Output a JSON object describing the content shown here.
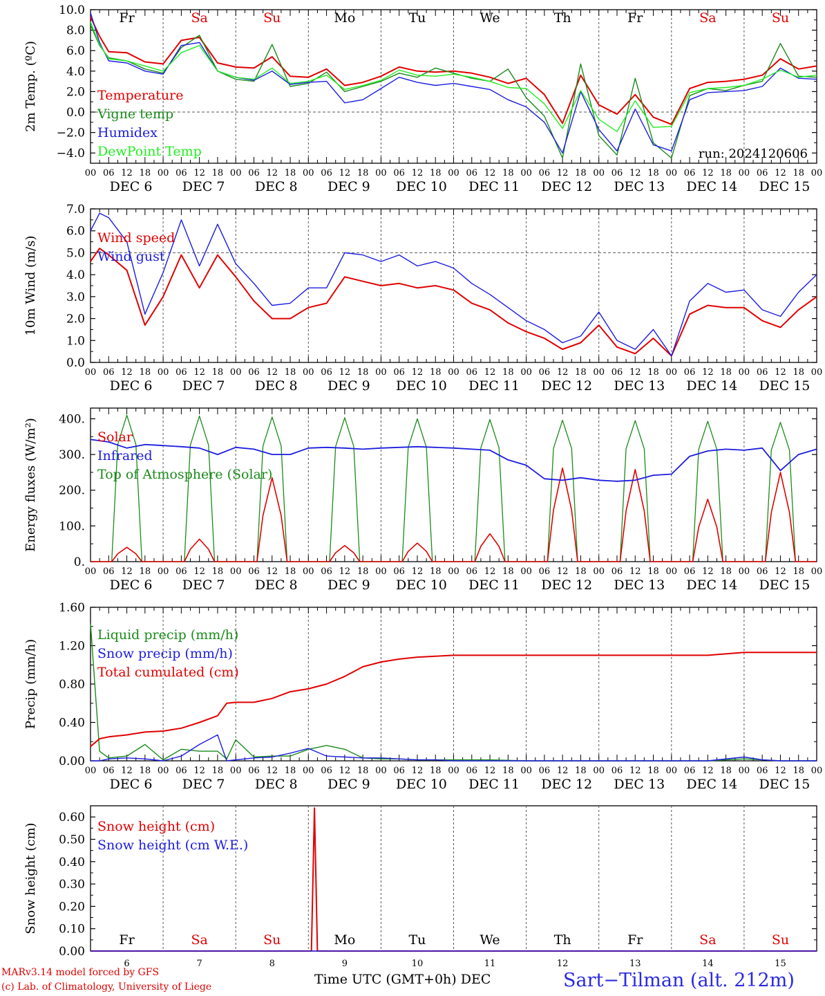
{
  "colors": {
    "red": "#e00000",
    "green": "#1a8a1a",
    "blue": "#1c1ce0",
    "lightgreen": "#22ee22",
    "axis": "#000000"
  },
  "days": [
    "Fr",
    "Sa",
    "Su",
    "Mo",
    "Tu",
    "We",
    "Th",
    "Fr",
    "Sa",
    "Su"
  ],
  "weekend": [
    false,
    true,
    true,
    false,
    false,
    false,
    false,
    false,
    true,
    true
  ],
  "dates": [
    "DEC 6",
    "DEC 7",
    "DEC 8",
    "DEC 9",
    "DEC 10",
    "DEC 11",
    "DEC 12",
    "DEC 13",
    "DEC 14",
    "DEC 15"
  ],
  "day_numbers": [
    "6",
    "7",
    "8",
    "9",
    "10",
    "11",
    "12",
    "13",
    "14",
    "15"
  ],
  "hour_labels": [
    "00",
    "06",
    "12",
    "18"
  ],
  "footer": {
    "credit_line1": "MARv3.14 model forced by GFS",
    "credit_line2": "(c) Lab. of Climatology, University of Liege",
    "xlabel": "Time UTC (GMT+0h) DEC",
    "station": "Sart−Tilman (alt. 212m)"
  },
  "chart_data": [
    {
      "type": "line",
      "ylabel": "2m Temp. (ºC)",
      "ylim": [
        -5,
        10
      ],
      "yticks": [
        10,
        8,
        6,
        4,
        2,
        0,
        -2,
        -4
      ],
      "ytick_labels": [
        "10.0",
        "8.0",
        "6.0",
        "4.0",
        "2.0",
        "0.0",
        "−2.0",
        "−4.0"
      ],
      "dashed_y": 0,
      "annotation": "run: 2024120606",
      "x_hours": [
        0,
        3,
        6,
        12,
        18,
        24,
        30,
        36,
        42,
        48,
        54,
        60,
        66,
        72,
        78,
        84,
        90,
        96,
        102,
        108,
        114,
        120,
        126,
        132,
        138,
        144,
        150,
        156,
        162,
        168,
        174,
        180,
        186,
        192,
        198,
        204,
        210,
        216,
        222,
        228,
        234,
        240
      ],
      "series": [
        {
          "name": "Temperature",
          "color": "red",
          "values": [
            9.3,
            7.4,
            5.9,
            5.8,
            4.9,
            4.7,
            7.0,
            7.3,
            4.8,
            4.4,
            4.3,
            5.4,
            3.5,
            3.4,
            4.2,
            2.6,
            2.9,
            3.5,
            4.4,
            4.0,
            3.9,
            4.0,
            3.8,
            3.4,
            2.8,
            3.3,
            1.7,
            -1.1,
            3.6,
            0.7,
            -0.2,
            1.7,
            -0.5,
            -1.2,
            2.3,
            2.9,
            3.0,
            3.2,
            3.6,
            5.2,
            4.2,
            4.5
          ]
        },
        {
          "name": "Vigne temp",
          "color": "green",
          "values": [
            8.5,
            6.5,
            5.3,
            5.0,
            4.2,
            3.8,
            6.3,
            7.5,
            4.0,
            3.2,
            3.0,
            6.6,
            2.5,
            2.8,
            3.9,
            2.0,
            2.5,
            3.0,
            3.8,
            3.4,
            4.3,
            3.8,
            3.3,
            3.0,
            4.2,
            1.4,
            -0.4,
            -4.5,
            4.7,
            -2.3,
            -4.2,
            3.3,
            -3.0,
            -4.5,
            1.6,
            2.3,
            2.1,
            2.6,
            3.0,
            6.7,
            3.5,
            3.4
          ]
        },
        {
          "name": "Humidex",
          "color": "blue",
          "values": [
            9.7,
            6.8,
            5.0,
            4.8,
            4.0,
            3.7,
            6.5,
            6.8,
            4.0,
            3.4,
            3.1,
            4.0,
            2.7,
            2.9,
            3.0,
            0.9,
            1.2,
            2.3,
            3.4,
            2.9,
            2.6,
            2.8,
            2.5,
            2.2,
            1.2,
            0.5,
            -1.0,
            -4.0,
            2.0,
            -1.7,
            -3.8,
            0.3,
            -3.2,
            -3.8,
            1.2,
            1.9,
            2.0,
            2.1,
            2.5,
            4.3,
            3.3,
            3.2
          ]
        },
        {
          "name": "DewPoint Temp",
          "color": "lightgreen",
          "values": [
            8.8,
            6.6,
            5.2,
            5.0,
            4.5,
            4.0,
            5.8,
            6.5,
            4.0,
            3.4,
            3.2,
            4.3,
            2.8,
            3.0,
            3.6,
            2.2,
            2.6,
            3.1,
            4.1,
            3.6,
            3.5,
            3.7,
            3.4,
            3.0,
            2.4,
            2.3,
            0.8,
            -1.6,
            2.1,
            -0.7,
            -1.9,
            1.1,
            -1.5,
            -1.4,
            1.9,
            2.3,
            2.4,
            2.6,
            3.2,
            4.1,
            3.4,
            3.6
          ]
        }
      ]
    },
    {
      "type": "line",
      "ylabel": "10m Wind (m/s)",
      "ylim": [
        0,
        7
      ],
      "yticks": [
        7,
        6,
        5,
        4,
        3,
        2,
        1,
        0
      ],
      "ytick_labels": [
        "7.0",
        "6.0",
        "5.0",
        "4.0",
        "3.0",
        "2.0",
        "1.0",
        "0.0"
      ],
      "dashed_y": 5,
      "x_hours": [
        0,
        3,
        6,
        12,
        18,
        24,
        30,
        36,
        42,
        48,
        54,
        60,
        66,
        72,
        78,
        84,
        90,
        96,
        102,
        108,
        114,
        120,
        126,
        132,
        138,
        144,
        150,
        156,
        162,
        168,
        174,
        180,
        186,
        192,
        198,
        204,
        210,
        216,
        222,
        228,
        234,
        240
      ],
      "series": [
        {
          "name": "Wind speed",
          "color": "red",
          "values": [
            4.6,
            5.2,
            4.9,
            4.2,
            1.7,
            3.0,
            4.9,
            3.4,
            4.9,
            3.9,
            2.8,
            2.0,
            2.0,
            2.5,
            2.7,
            3.9,
            3.7,
            3.5,
            3.6,
            3.4,
            3.5,
            3.3,
            2.7,
            2.4,
            1.8,
            1.4,
            1.1,
            0.6,
            0.9,
            1.7,
            0.7,
            0.4,
            1.1,
            0.3,
            2.2,
            2.6,
            2.5,
            2.5,
            1.9,
            1.6,
            2.4,
            3.0
          ]
        },
        {
          "name": "Wind gust",
          "color": "blue",
          "values": [
            6.0,
            6.8,
            6.6,
            5.5,
            2.2,
            4.1,
            6.5,
            4.4,
            6.3,
            4.5,
            3.6,
            2.6,
            2.7,
            3.4,
            3.4,
            5.0,
            4.9,
            4.6,
            4.9,
            4.4,
            4.6,
            4.3,
            3.6,
            3.1,
            2.5,
            1.9,
            1.5,
            0.9,
            1.2,
            2.3,
            1.0,
            0.6,
            1.5,
            0.3,
            2.8,
            3.6,
            3.2,
            3.3,
            2.4,
            2.1,
            3.2,
            4.0
          ]
        }
      ]
    },
    {
      "type": "line",
      "ylabel": "Energy fluxes (W/m²)",
      "ylim": [
        0,
        430
      ],
      "yticks": [
        400,
        300,
        200,
        100,
        0
      ],
      "ytick_labels": [
        "400.",
        "300.",
        "200.",
        "100.",
        "0."
      ],
      "solar_peaks": [
        40,
        63,
        235,
        45,
        52,
        78,
        262,
        258,
        175,
        250
      ],
      "toa_peaks": [
        410,
        408,
        405,
        403,
        400,
        398,
        396,
        395,
        393,
        390
      ],
      "series": [
        {
          "name": "Solar",
          "color": "red"
        },
        {
          "name": "Infrared",
          "color": "blue",
          "x_hours": [
            0,
            6,
            12,
            18,
            24,
            30,
            36,
            42,
            48,
            54,
            60,
            66,
            72,
            78,
            84,
            90,
            96,
            102,
            108,
            114,
            120,
            126,
            132,
            138,
            144,
            150,
            156,
            162,
            168,
            174,
            180,
            186,
            192,
            198,
            204,
            210,
            216,
            222,
            228,
            234,
            240
          ],
          "values": [
            342,
            335,
            318,
            328,
            325,
            322,
            318,
            300,
            320,
            315,
            300,
            300,
            318,
            320,
            318,
            315,
            318,
            320,
            322,
            320,
            318,
            315,
            312,
            285,
            270,
            232,
            228,
            235,
            228,
            225,
            228,
            242,
            245,
            295,
            310,
            315,
            312,
            318,
            255,
            300,
            315
          ]
        },
        {
          "name": "Top of Atmosphere (Solar)",
          "color": "green"
        }
      ]
    },
    {
      "type": "line",
      "ylabel": "Precip (mm/h)",
      "ylim": [
        0,
        1.6
      ],
      "yticks": [
        1.6,
        1.2,
        0.8,
        0.4,
        0
      ],
      "ytick_labels": [
        "1.60",
        "1.20",
        "0.80",
        "0.40",
        "0.00"
      ],
      "x_hours": [
        0,
        3,
        6,
        12,
        18,
        24,
        30,
        36,
        42,
        45,
        48,
        54,
        60,
        66,
        72,
        78,
        84,
        90,
        96,
        102,
        108,
        114,
        120,
        132,
        144,
        156,
        168,
        180,
        192,
        204,
        216,
        222,
        228,
        240
      ],
      "series": [
        {
          "name": "Liquid precip (mm/h)",
          "color": "green",
          "values": [
            1.43,
            0.1,
            0.03,
            0.05,
            0.17,
            0.01,
            0.12,
            0.1,
            0.1,
            0.02,
            0.22,
            0.04,
            0.05,
            0.05,
            0.12,
            0.16,
            0.12,
            0.03,
            0.02,
            0.02,
            0.01,
            0.01,
            0.01,
            0.01,
            0.0,
            0.0,
            0.0,
            0.0,
            0.0,
            0.0,
            0.02,
            0.01,
            0.0,
            0.0
          ]
        },
        {
          "name": "Snow precip (mm/h)",
          "color": "blue",
          "values": [
            0.0,
            0.0,
            0.02,
            0.03,
            0.02,
            0.0,
            0.05,
            0.17,
            0.27,
            0.0,
            0.01,
            0.03,
            0.04,
            0.08,
            0.13,
            0.05,
            0.04,
            0.03,
            0.03,
            0.02,
            0.01,
            0.01,
            0.0,
            0.0,
            0.0,
            0.0,
            0.0,
            0.0,
            0.0,
            0.0,
            0.04,
            0.01,
            0.0,
            0.0
          ]
        },
        {
          "name": "Total cumulated (cm)",
          "color": "red",
          "values": [
            0.15,
            0.23,
            0.25,
            0.27,
            0.3,
            0.31,
            0.34,
            0.4,
            0.47,
            0.6,
            0.61,
            0.61,
            0.65,
            0.72,
            0.75,
            0.8,
            0.88,
            0.98,
            1.03,
            1.06,
            1.08,
            1.09,
            1.1,
            1.1,
            1.1,
            1.1,
            1.1,
            1.1,
            1.1,
            1.1,
            1.13,
            1.13,
            1.13,
            1.13
          ]
        }
      ]
    },
    {
      "type": "line",
      "ylabel": "Snow height (cm)",
      "ylim": [
        0,
        0.65
      ],
      "yticks": [
        0.6,
        0.5,
        0.4,
        0.3,
        0.2,
        0.1,
        0
      ],
      "ytick_labels": [
        "0.60",
        "0.50",
        "0.40",
        "0.30",
        "0.20",
        "0.10",
        "0.00"
      ],
      "series": [
        {
          "name": "Snow height (cm)",
          "color": "red",
          "x_hours": [
            0,
            73,
            74,
            75,
            240
          ],
          "values": [
            0,
            0,
            0.64,
            0,
            0
          ]
        },
        {
          "name": "Snow height (cm W.E.)",
          "color": "blue",
          "x_hours": [
            0,
            240
          ],
          "values": [
            0,
            0
          ]
        }
      ]
    }
  ]
}
